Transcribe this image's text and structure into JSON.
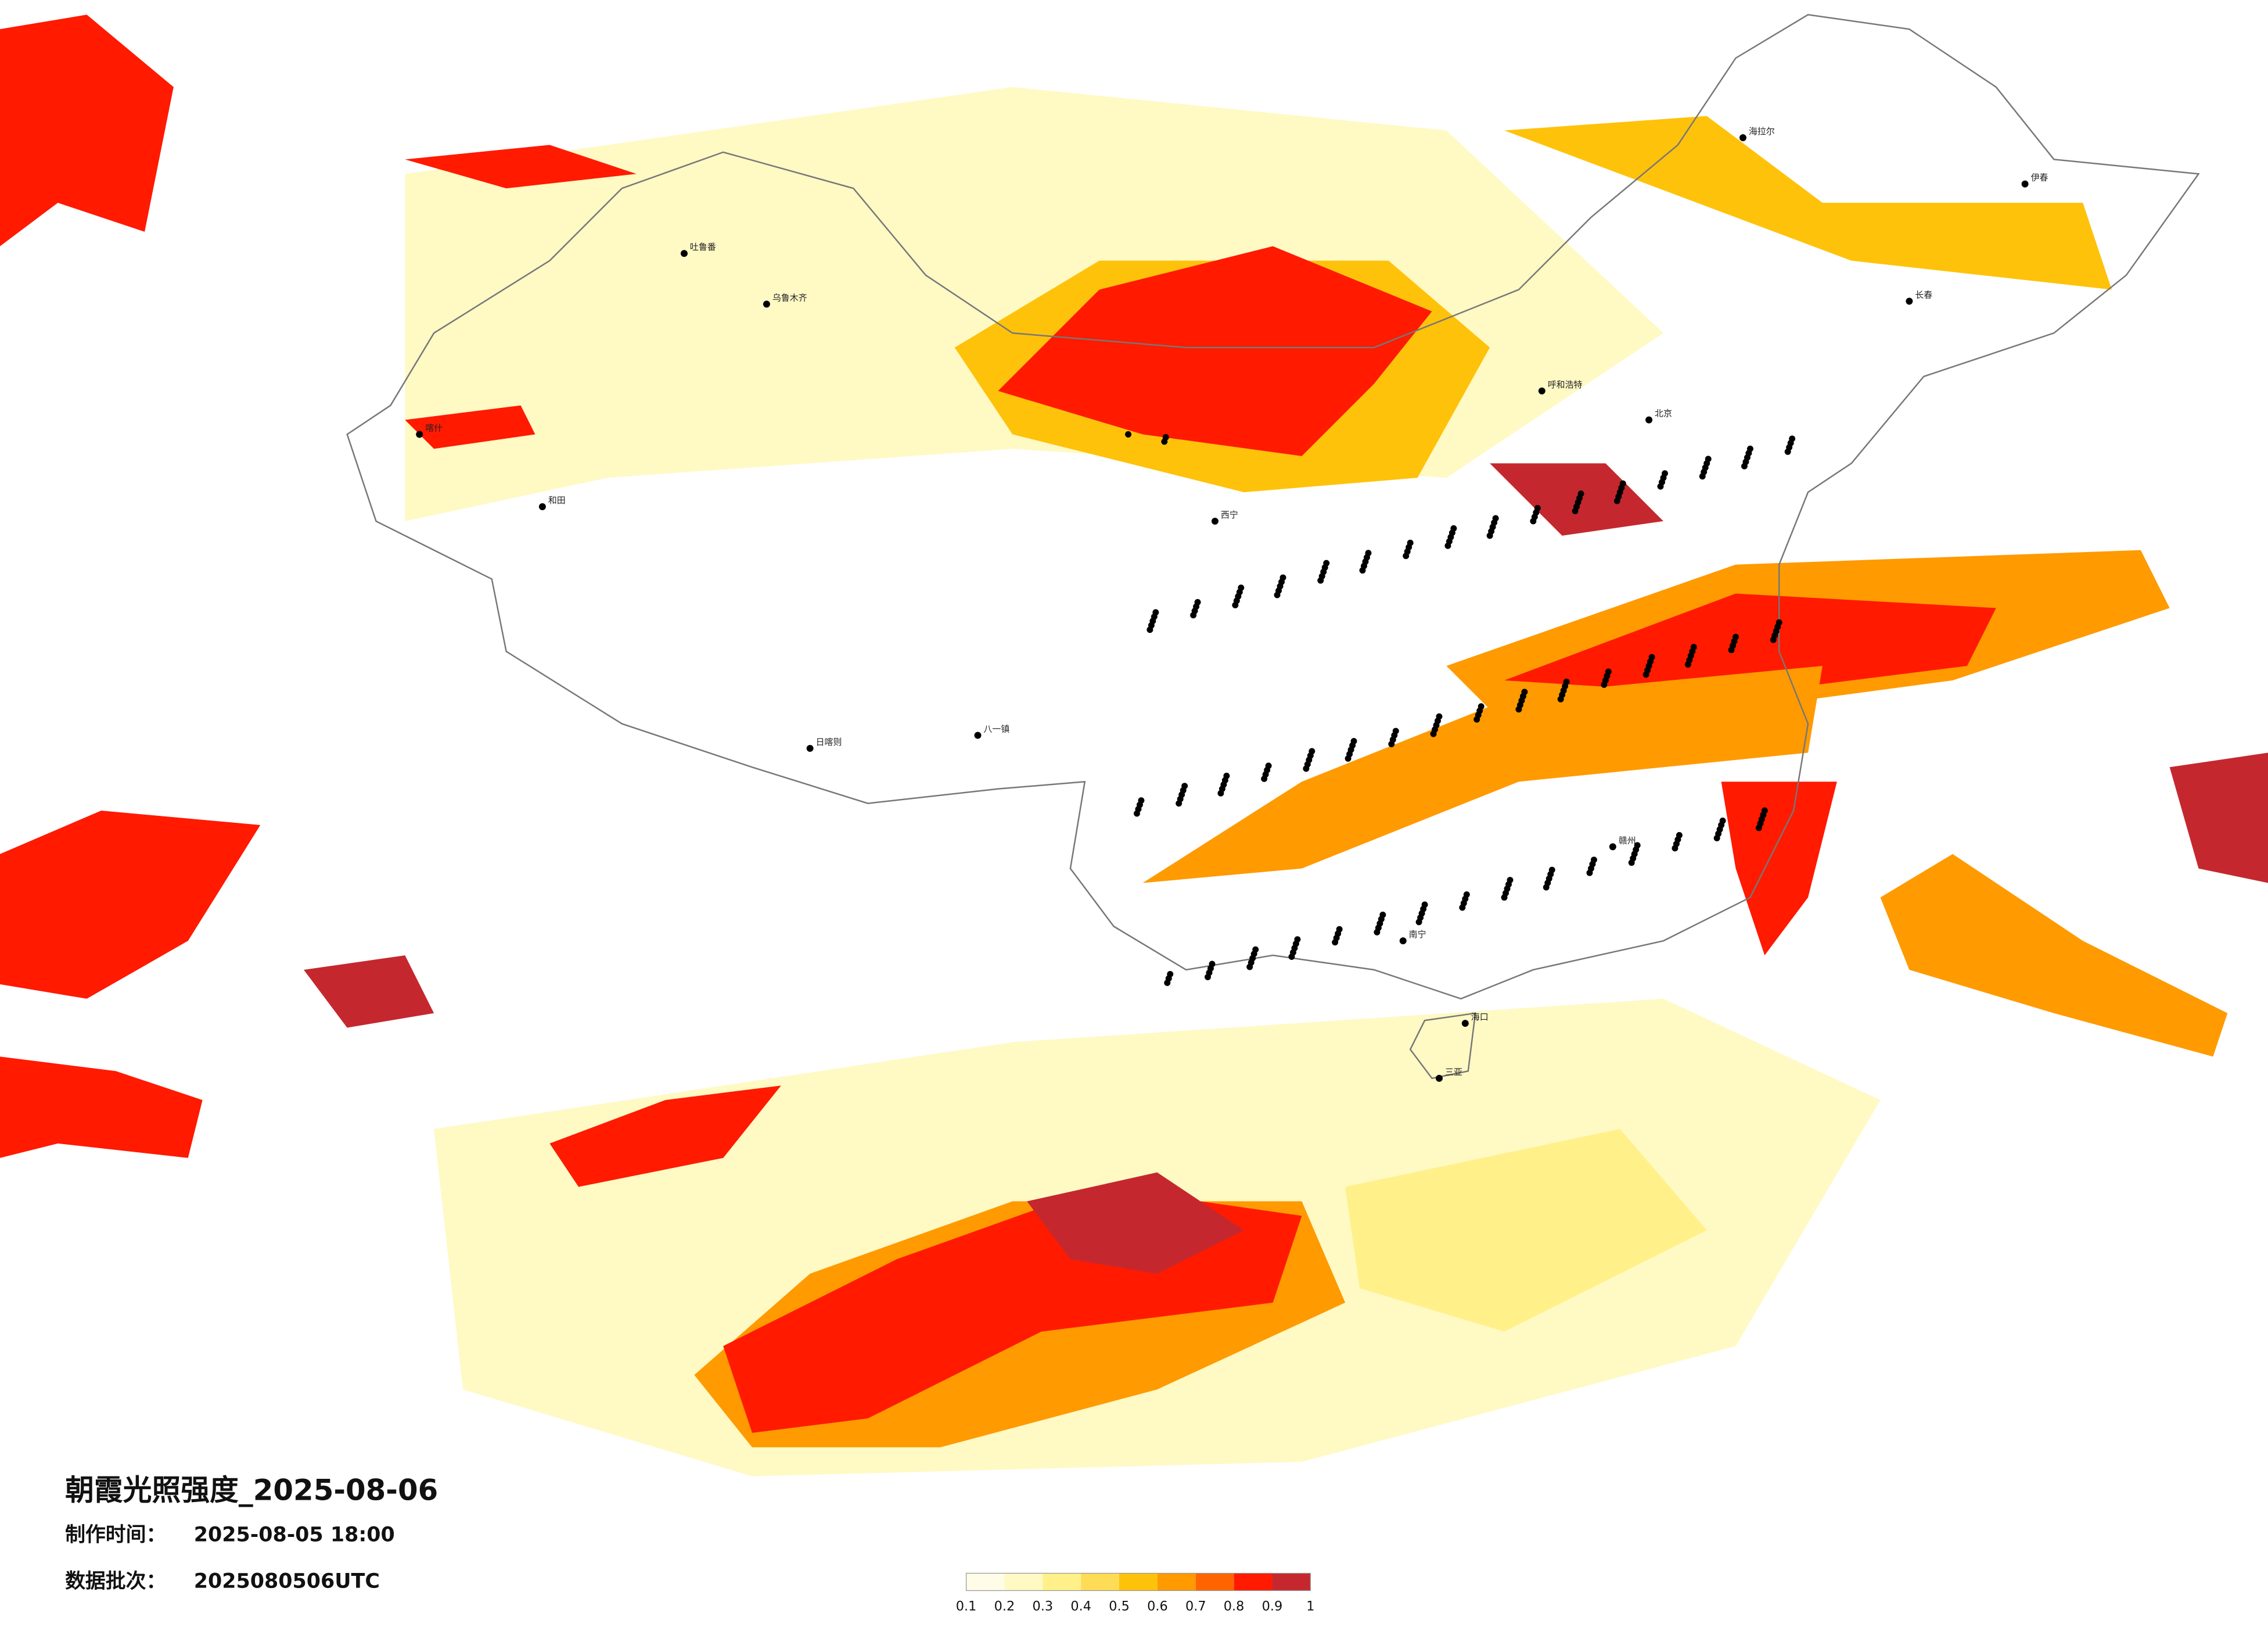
{
  "title": "朝霞光照强度_2025-08-06",
  "made_label": "制作时间：",
  "made_time": "2025-08-05 18:00",
  "batch_label": "数据批次：",
  "batch": "2025080506UTC",
  "legend": {
    "colors": [
      "#fffce8",
      "#fff9c4",
      "#fff08a",
      "#ffdc55",
      "#ffc20a",
      "#ff9a00",
      "#ff6400",
      "#ff1a00",
      "#c4282e"
    ],
    "ticks": [
      0.1,
      0.2,
      0.3,
      0.4,
      0.5,
      0.6,
      0.7,
      0.8,
      0.9,
      1
    ]
  },
  "cities": [
    "北京",
    "呼和浩特",
    "乌鲁木齐",
    "喀什",
    "和田",
    "海拉尔",
    "伊春",
    "长春",
    "日喀则",
    "八一镇",
    "南宁",
    "海口",
    "三亚",
    "赣州",
    "吐鲁番",
    "西宁"
  ]
}
